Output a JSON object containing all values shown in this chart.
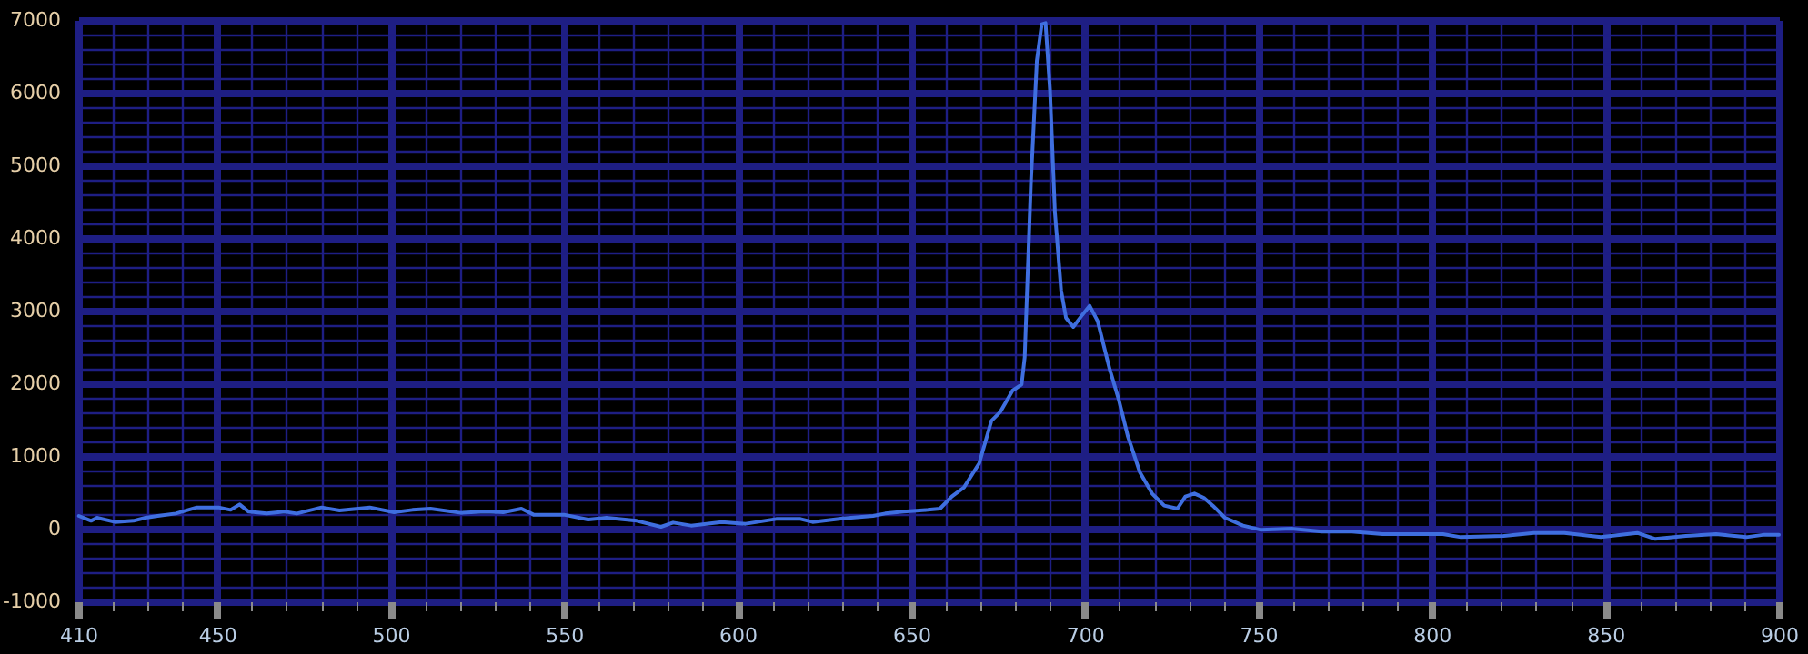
{
  "chart_data": {
    "type": "line",
    "x": [
      410.2,
      413.7,
      415.4,
      420.6,
      425.9,
      429.4,
      432.9,
      438.1,
      439.9,
      444.2,
      450.4,
      453.9,
      456.5,
      459.1,
      464.3,
      469.6,
      473.0,
      480.1,
      485.3,
      494.0,
      501.0,
      506.3,
      511.5,
      520.2,
      527.2,
      532.5,
      537.7,
      541.2,
      549.9,
      556.9,
      562.2,
      570.9,
      577.9,
      581.4,
      586.6,
      595.4,
      602.3,
      611.1,
      618.1,
      621.6,
      630.3,
      639.0,
      642.5,
      647.8,
      654.8,
      658.3,
      661.7,
      665.2,
      669.6,
      673.1,
      675.7,
      679.2,
      681.8,
      682.7,
      684.5,
      686.2,
      687.6,
      688.7,
      690.0,
      691.4,
      693.2,
      694.6,
      696.7,
      699.3,
      701.4,
      703.7,
      707.2,
      709.8,
      712.4,
      715.9,
      719.4,
      722.9,
      726.7,
      729.0,
      731.6,
      734.3,
      736.9,
      740.4,
      745.6,
      750.8,
      759.6,
      768.3,
      777.0,
      785.8,
      794.5,
      803.2,
      808.4,
      820.7,
      829.4,
      838.2,
      848.7,
      859.2,
      864.4,
      873.2,
      881.9,
      890.6,
      895.8,
      900
    ],
    "series": [
      {
        "color": "#3f6fe0",
        "values": [
          175,
          108,
          150,
          92,
          108,
          150,
          175,
          208,
          233,
          292,
          292,
          258,
          333,
          233,
          208,
          233,
          208,
          292,
          250,
          292,
          225,
          258,
          275,
          217,
          233,
          225,
          275,
          192,
          192,
          125,
          150,
          108,
          25,
          83,
          42,
          92,
          67,
          133,
          133,
          92,
          142,
          175,
          208,
          233,
          258,
          275,
          442,
          567,
          900,
          1483,
          1608,
          1900,
          1983,
          2358,
          4775,
          6442,
          6942,
          6958,
          6025,
          4358,
          3275,
          2900,
          2775,
          2942,
          3067,
          2858,
          2192,
          1775,
          1275,
          775,
          483,
          317,
          275,
          442,
          483,
          425,
          317,
          150,
          42,
          -17,
          0,
          -42,
          -42,
          -75,
          -75,
          -75,
          -117,
          -100,
          -58,
          -58,
          -117,
          -58,
          -142,
          -100,
          -75,
          -117,
          -83,
          -83
        ]
      }
    ],
    "xlim": [
      410,
      900
    ],
    "xticks": [
      410,
      {
        "value": 420,
        "label": null
      },
      {
        "value": 430,
        "label": null
      },
      {
        "value": 440,
        "label": null
      },
      450,
      {
        "value": 460,
        "label": null
      },
      {
        "value": 470,
        "label": null
      },
      {
        "value": 480,
        "label": null
      },
      {
        "value": 490,
        "label": null
      },
      500,
      {
        "value": 510,
        "label": null
      },
      {
        "value": 520,
        "label": null
      },
      {
        "value": 530,
        "label": null
      },
      {
        "value": 540,
        "label": null
      },
      550,
      {
        "value": 560,
        "label": null
      },
      {
        "value": 570,
        "label": null
      },
      {
        "value": 580,
        "label": null
      },
      {
        "value": 590,
        "label": null
      },
      600,
      {
        "value": 610,
        "label": null
      },
      {
        "value": 620,
        "label": null
      },
      {
        "value": 630,
        "label": null
      },
      {
        "value": 640,
        "label": null
      },
      650,
      {
        "value": 660,
        "label": null
      },
      {
        "value": 670,
        "label": null
      },
      {
        "value": 680,
        "label": null
      },
      {
        "value": 690,
        "label": null
      },
      700,
      {
        "value": 710,
        "label": null
      },
      {
        "value": 720,
        "label": null
      },
      {
        "value": 730,
        "label": null
      },
      {
        "value": 740,
        "label": null
      },
      750,
      {
        "value": 760,
        "label": null
      },
      {
        "value": 770,
        "label": null
      },
      {
        "value": 780,
        "label": null
      },
      {
        "value": 790,
        "label": null
      },
      800,
      {
        "value": 810,
        "label": null
      },
      {
        "value": 820,
        "label": null
      },
      {
        "value": 830,
        "label": null
      },
      {
        "value": 840,
        "label": null
      },
      850,
      {
        "value": 860,
        "label": null
      },
      {
        "value": 870,
        "label": null
      },
      {
        "value": 880,
        "label": null
      },
      {
        "value": 890,
        "label": null
      },
      900
    ],
    "ylim": [
      -1000,
      7000
    ],
    "yticks": [
      -1000,
      {
        "value": -800,
        "label": null
      },
      {
        "value": -600,
        "label": null
      },
      {
        "value": -400,
        "label": null
      },
      {
        "value": -200,
        "label": null
      },
      0,
      {
        "value": 200,
        "label": null
      },
      {
        "value": 400,
        "label": null
      },
      {
        "value": 600,
        "label": null
      },
      {
        "value": 800,
        "label": null
      },
      1000,
      {
        "value": 1200,
        "label": null
      },
      {
        "value": 1400,
        "label": null
      },
      {
        "value": 1600,
        "label": null
      },
      {
        "value": 1800,
        "label": null
      },
      2000,
      {
        "value": 2200,
        "label": null
      },
      {
        "value": 2400,
        "label": null
      },
      {
        "value": 2600,
        "label": null
      },
      {
        "value": 2800,
        "label": null
      },
      3000,
      {
        "value": 3200,
        "label": null
      },
      {
        "value": 3400,
        "label": null
      },
      {
        "value": 3600,
        "label": null
      },
      {
        "value": 3800,
        "label": null
      },
      4000,
      {
        "value": 4200,
        "label": null
      },
      {
        "value": 4400,
        "label": null
      },
      {
        "value": 4600,
        "label": null
      },
      {
        "value": 4800,
        "label": null
      },
      5000,
      {
        "value": 5200,
        "label": null
      },
      {
        "value": 5400,
        "label": null
      },
      {
        "value": 5600,
        "label": null
      },
      {
        "value": 5800,
        "label": null
      },
      6000,
      {
        "value": 6200,
        "label": null
      },
      {
        "value": 6400,
        "label": null
      },
      {
        "value": 6600,
        "label": null
      },
      {
        "value": 6800,
        "label": null
      },
      7000
    ],
    "grid": true,
    "marker": "none",
    "line_style": "solid"
  }
}
